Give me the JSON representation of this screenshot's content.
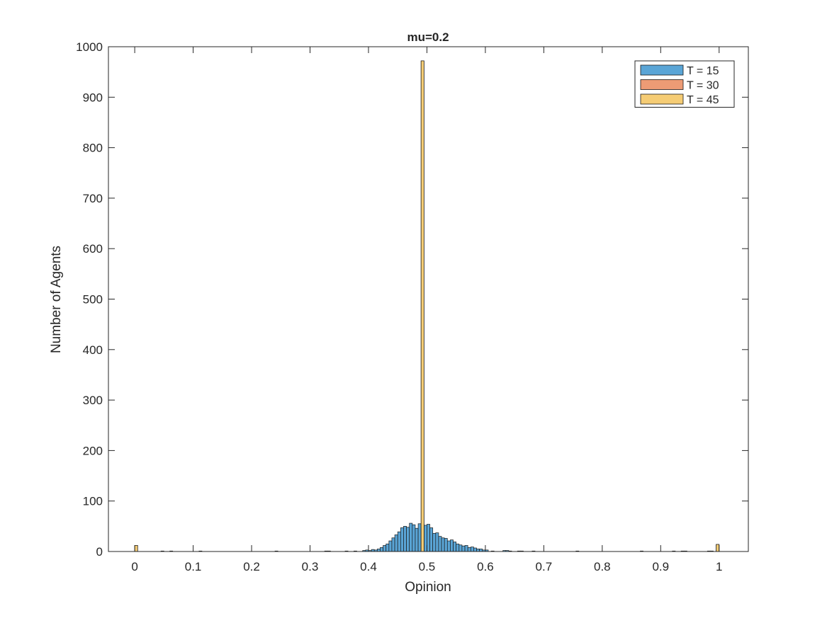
{
  "chart_data": {
    "type": "bar",
    "title": "mu=0.2",
    "xlabel": "Opinion",
    "ylabel": "Number of Agents",
    "xlim": [
      -0.045,
      1.05
    ],
    "ylim": [
      0,
      1000
    ],
    "xticks": [
      0,
      0.1,
      0.2,
      0.3,
      0.4,
      0.5,
      0.6,
      0.7,
      0.8,
      0.9,
      1
    ],
    "xtick_labels": [
      "0",
      "0.1",
      "0.2",
      "0.3",
      "0.4",
      "0.5",
      "0.6",
      "0.7",
      "0.8",
      "0.9",
      "1"
    ],
    "yticks": [
      0,
      100,
      200,
      300,
      400,
      500,
      600,
      700,
      800,
      900,
      1000
    ],
    "ytick_labels": [
      "0",
      "100",
      "200",
      "300",
      "400",
      "500",
      "600",
      "700",
      "800",
      "900",
      "1000"
    ],
    "bin_width": 0.005,
    "grid": false,
    "legend_position": "top-right",
    "series": [
      {
        "name": "T = 15",
        "color": "#5aa5d6",
        "bins": [
          [
            0.0025,
            1
          ],
          [
            0.0475,
            1
          ],
          [
            0.0625,
            1
          ],
          [
            0.1125,
            1
          ],
          [
            0.2425,
            1
          ],
          [
            0.3275,
            1
          ],
          [
            0.3325,
            1
          ],
          [
            0.3625,
            1
          ],
          [
            0.3775,
            1
          ],
          [
            0.3925,
            2
          ],
          [
            0.3975,
            3
          ],
          [
            0.4025,
            2
          ],
          [
            0.4075,
            4
          ],
          [
            0.4125,
            3
          ],
          [
            0.4175,
            5
          ],
          [
            0.4225,
            8
          ],
          [
            0.4275,
            12
          ],
          [
            0.4325,
            15
          ],
          [
            0.4375,
            21
          ],
          [
            0.4425,
            27
          ],
          [
            0.4475,
            33
          ],
          [
            0.4525,
            39
          ],
          [
            0.4575,
            47
          ],
          [
            0.4625,
            50
          ],
          [
            0.4675,
            48
          ],
          [
            0.4725,
            56
          ],
          [
            0.4775,
            53
          ],
          [
            0.4825,
            46
          ],
          [
            0.4875,
            55
          ],
          [
            0.4925,
            44
          ],
          [
            0.4975,
            52
          ],
          [
            0.5025,
            54
          ],
          [
            0.5075,
            47
          ],
          [
            0.5125,
            36
          ],
          [
            0.5175,
            37
          ],
          [
            0.5225,
            30
          ],
          [
            0.5275,
            27
          ],
          [
            0.5325,
            26
          ],
          [
            0.5375,
            21
          ],
          [
            0.5425,
            23
          ],
          [
            0.5475,
            19
          ],
          [
            0.5525,
            15
          ],
          [
            0.5575,
            13
          ],
          [
            0.5625,
            11
          ],
          [
            0.5675,
            12
          ],
          [
            0.5725,
            8
          ],
          [
            0.5775,
            9
          ],
          [
            0.5825,
            7
          ],
          [
            0.5875,
            5
          ],
          [
            0.5925,
            5
          ],
          [
            0.5975,
            3
          ],
          [
            0.6025,
            3
          ],
          [
            0.6125,
            1
          ],
          [
            0.6325,
            2
          ],
          [
            0.6375,
            2
          ],
          [
            0.6425,
            1
          ],
          [
            0.6575,
            1
          ],
          [
            0.6625,
            1
          ],
          [
            0.6825,
            1
          ],
          [
            0.7575,
            1
          ],
          [
            0.8675,
            1
          ],
          [
            0.9225,
            1
          ],
          [
            0.9375,
            1
          ],
          [
            0.9425,
            1
          ],
          [
            0.9825,
            1
          ],
          [
            0.9875,
            1
          ]
        ]
      },
      {
        "name": "T = 30",
        "color": "#ed9b75",
        "bins": [
          [
            0.0025,
            12
          ],
          [
            0.4925,
            972
          ],
          [
            0.9975,
            14
          ]
        ]
      },
      {
        "name": "T = 45",
        "color": "#f5cc74",
        "bins": [
          [
            0.0025,
            12
          ],
          [
            0.4925,
            972
          ],
          [
            0.9975,
            14
          ]
        ]
      }
    ]
  }
}
